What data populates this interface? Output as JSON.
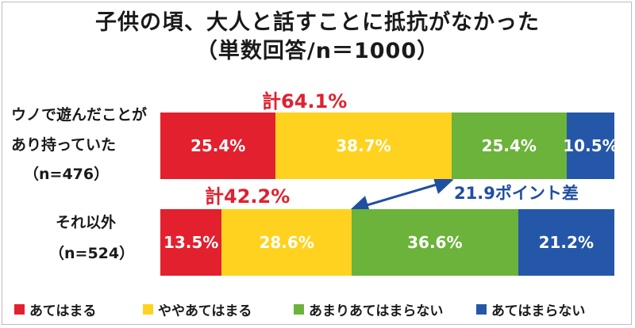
{
  "chart_data": {
    "type": "bar",
    "stacked": true,
    "orientation": "horizontal",
    "title": "子供の頃、大人と話すことに抵抗がなかった",
    "subtitle": "（単数回答/n＝1000）",
    "categories": [
      {
        "lines": [
          "ウノで遊んだことが",
          "あり持っていた",
          "（n=476）"
        ]
      },
      {
        "lines": [
          "それ以外",
          "（n=524）"
        ]
      }
    ],
    "series": [
      {
        "name": "あてはまる",
        "color": "#e3202e",
        "values": [
          25.4,
          13.5
        ],
        "labels": [
          "25.4%",
          "13.5%"
        ]
      },
      {
        "name": "ややあてはまる",
        "color": "#ffd21f",
        "values": [
          38.7,
          28.6
        ],
        "labels": [
          "38.7%",
          "28.6%"
        ]
      },
      {
        "name": "あまりあてはまらない",
        "color": "#6bb33a",
        "values": [
          25.4,
          36.6
        ],
        "labels": [
          "25.4%",
          "36.6%"
        ]
      },
      {
        "name": "あてはまらない",
        "color": "#2457a8",
        "values": [
          10.5,
          21.2
        ],
        "labels": [
          "10.5%",
          "21.2%"
        ]
      }
    ],
    "totals": [
      "計64.1%",
      "計42.2%"
    ],
    "difference_label": "21.9ポイント差",
    "xlim": [
      0,
      100
    ],
    "legend": "bottom",
    "grid": false
  }
}
